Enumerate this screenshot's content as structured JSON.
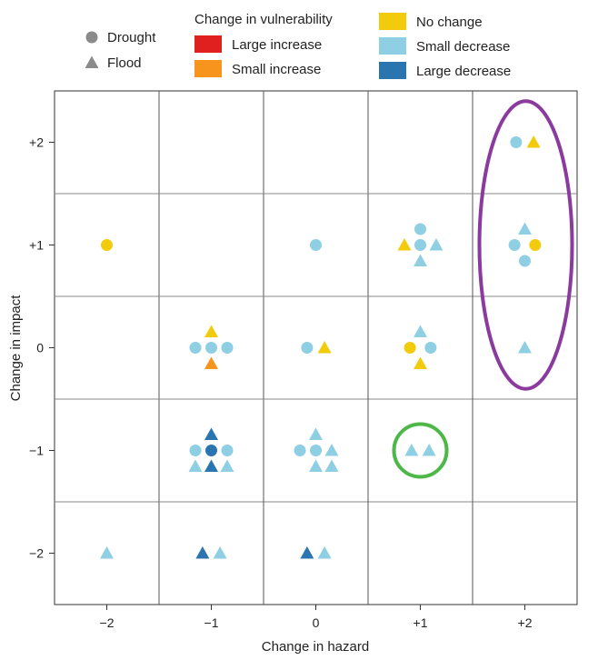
{
  "chart_data": {
    "type": "scatter",
    "xlabel": "Change in hazard",
    "ylabel": "Change in impact",
    "xlim": [
      -2.5,
      2.5
    ],
    "ylim": [
      -2.5,
      2.5
    ],
    "x_ticks": [
      "−2",
      "−1",
      "0",
      "+1",
      "+2"
    ],
    "y_ticks": [
      "+2",
      "+1",
      "0",
      "−1",
      "−2"
    ],
    "grid": true,
    "legend": {
      "placement": "top",
      "shape_title": "",
      "shapes": [
        {
          "key": "drought",
          "label": "Drought",
          "shape": "circle"
        },
        {
          "key": "flood",
          "label": "Flood",
          "shape": "triangle"
        }
      ],
      "color_title": "Change in vulnerability",
      "colors": [
        {
          "key": "large_increase",
          "label": "Large increase",
          "color": "#e0201f"
        },
        {
          "key": "small_increase",
          "label": "Small increase",
          "color": "#f7941d"
        },
        {
          "key": "no_change",
          "label": "No change",
          "color": "#f2cc0c"
        },
        {
          "key": "small_decrease",
          "label": "Small decrease",
          "color": "#8ecfe3"
        },
        {
          "key": "large_decrease",
          "label": "Large decrease",
          "color": "#2a74b0"
        }
      ]
    },
    "points": [
      {
        "hazard": -2,
        "impact": 1,
        "type": "drought",
        "vuln": "no_change",
        "slot": "c"
      },
      {
        "hazard": -2,
        "impact": -2,
        "type": "flood",
        "vuln": "small_decrease",
        "slot": "c"
      },
      {
        "hazard": -1,
        "impact": 0,
        "type": "flood",
        "vuln": "no_change",
        "slot": "u"
      },
      {
        "hazard": -1,
        "impact": 0,
        "type": "drought",
        "vuln": "small_decrease",
        "slot": "l"
      },
      {
        "hazard": -1,
        "impact": 0,
        "type": "drought",
        "vuln": "small_decrease",
        "slot": "c"
      },
      {
        "hazard": -1,
        "impact": 0,
        "type": "drought",
        "vuln": "small_decrease",
        "slot": "r"
      },
      {
        "hazard": -1,
        "impact": 0,
        "type": "flood",
        "vuln": "small_increase",
        "slot": "d"
      },
      {
        "hazard": -1,
        "impact": -1,
        "type": "flood",
        "vuln": "large_decrease",
        "slot": "u"
      },
      {
        "hazard": -1,
        "impact": -1,
        "type": "drought",
        "vuln": "small_decrease",
        "slot": "l"
      },
      {
        "hazard": -1,
        "impact": -1,
        "type": "drought",
        "vuln": "large_decrease",
        "slot": "c"
      },
      {
        "hazard": -1,
        "impact": -1,
        "type": "drought",
        "vuln": "small_decrease",
        "slot": "r"
      },
      {
        "hazard": -1,
        "impact": -1,
        "type": "flood",
        "vuln": "small_decrease",
        "slot": "dl"
      },
      {
        "hazard": -1,
        "impact": -1,
        "type": "flood",
        "vuln": "large_decrease",
        "slot": "d"
      },
      {
        "hazard": -1,
        "impact": -1,
        "type": "flood",
        "vuln": "small_decrease",
        "slot": "dr"
      },
      {
        "hazard": -1,
        "impact": -2,
        "type": "flood",
        "vuln": "large_decrease",
        "slot": "hl"
      },
      {
        "hazard": -1,
        "impact": -2,
        "type": "flood",
        "vuln": "small_decrease",
        "slot": "hr"
      },
      {
        "hazard": 0,
        "impact": 1,
        "type": "drought",
        "vuln": "small_decrease",
        "slot": "c"
      },
      {
        "hazard": 0,
        "impact": 0,
        "type": "drought",
        "vuln": "small_decrease",
        "slot": "hl"
      },
      {
        "hazard": 0,
        "impact": 0,
        "type": "flood",
        "vuln": "no_change",
        "slot": "hr"
      },
      {
        "hazard": 0,
        "impact": -1,
        "type": "flood",
        "vuln": "small_decrease",
        "slot": "u"
      },
      {
        "hazard": 0,
        "impact": -1,
        "type": "drought",
        "vuln": "small_decrease",
        "slot": "l"
      },
      {
        "hazard": 0,
        "impact": -1,
        "type": "drought",
        "vuln": "small_decrease",
        "slot": "c"
      },
      {
        "hazard": 0,
        "impact": -1,
        "type": "flood",
        "vuln": "small_decrease",
        "slot": "r"
      },
      {
        "hazard": 0,
        "impact": -1,
        "type": "flood",
        "vuln": "small_decrease",
        "slot": "d"
      },
      {
        "hazard": 0,
        "impact": -1,
        "type": "flood",
        "vuln": "small_decrease",
        "slot": "dr"
      },
      {
        "hazard": 0,
        "impact": -2,
        "type": "flood",
        "vuln": "large_decrease",
        "slot": "hl"
      },
      {
        "hazard": 0,
        "impact": -2,
        "type": "flood",
        "vuln": "small_decrease",
        "slot": "hr"
      },
      {
        "hazard": 1,
        "impact": 1,
        "type": "drought",
        "vuln": "small_decrease",
        "slot": "u"
      },
      {
        "hazard": 1,
        "impact": 1,
        "type": "flood",
        "vuln": "no_change",
        "slot": "l"
      },
      {
        "hazard": 1,
        "impact": 1,
        "type": "drought",
        "vuln": "small_decrease",
        "slot": "c"
      },
      {
        "hazard": 1,
        "impact": 1,
        "type": "flood",
        "vuln": "small_decrease",
        "slot": "r"
      },
      {
        "hazard": 1,
        "impact": 1,
        "type": "flood",
        "vuln": "small_decrease",
        "slot": "d"
      },
      {
        "hazard": 1,
        "impact": 0,
        "type": "flood",
        "vuln": "small_decrease",
        "slot": "u"
      },
      {
        "hazard": 1,
        "impact": 0,
        "type": "drought",
        "vuln": "no_change",
        "slot": "ml"
      },
      {
        "hazard": 1,
        "impact": 0,
        "type": "drought",
        "vuln": "small_decrease",
        "slot": "mr"
      },
      {
        "hazard": 1,
        "impact": 0,
        "type": "flood",
        "vuln": "no_change",
        "slot": "d"
      },
      {
        "hazard": 1,
        "impact": -1,
        "type": "flood",
        "vuln": "small_decrease",
        "slot": "hl"
      },
      {
        "hazard": 1,
        "impact": -1,
        "type": "flood",
        "vuln": "small_decrease",
        "slot": "hr"
      },
      {
        "hazard": 2,
        "impact": 2,
        "type": "drought",
        "vuln": "small_decrease",
        "slot": "hl"
      },
      {
        "hazard": 2,
        "impact": 2,
        "type": "flood",
        "vuln": "no_change",
        "slot": "hr"
      },
      {
        "hazard": 2,
        "impact": 1,
        "type": "flood",
        "vuln": "small_decrease",
        "slot": "u"
      },
      {
        "hazard": 2,
        "impact": 1,
        "type": "drought",
        "vuln": "small_decrease",
        "slot": "ml"
      },
      {
        "hazard": 2,
        "impact": 1,
        "type": "drought",
        "vuln": "no_change",
        "slot": "mr"
      },
      {
        "hazard": 2,
        "impact": 1,
        "type": "drought",
        "vuln": "small_decrease",
        "slot": "d"
      },
      {
        "hazard": 2,
        "impact": 0,
        "type": "flood",
        "vuln": "small_decrease",
        "slot": "c"
      }
    ],
    "annotations": [
      {
        "shape": "ellipse",
        "color": "#8b3a9e",
        "hazard": 2,
        "impact_range": [
          -0.4,
          2.4
        ]
      },
      {
        "shape": "circle",
        "color": "#4db848",
        "hazard": 1,
        "impact": -1
      }
    ],
    "marker_grey": "#8a8a8a"
  }
}
